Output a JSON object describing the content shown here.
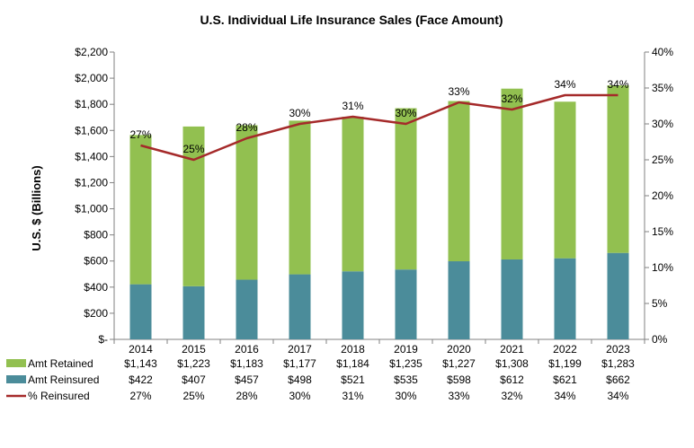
{
  "chart_data": {
    "type": "bar",
    "title": "U.S. Individual Life Insurance Sales (Face Amount)",
    "xlabel": "",
    "ylabel": "U.S. $ (Billions)",
    "ylim": [
      0,
      2200
    ],
    "y2lim": [
      0,
      40
    ],
    "y_ticks": [
      "$-",
      "$200",
      "$400",
      "$600",
      "$800",
      "$1,000",
      "$1,200",
      "$1,400",
      "$1,600",
      "$1,800",
      "$2,000",
      "$2,200"
    ],
    "y2_ticks": [
      "0%",
      "5%",
      "10%",
      "15%",
      "20%",
      "25%",
      "30%",
      "35%",
      "40%"
    ],
    "categories": [
      "2014",
      "2015",
      "2016",
      "2017",
      "2018",
      "2019",
      "2020",
      "2021",
      "2022",
      "2023"
    ],
    "stacked": true,
    "grid": false,
    "legend": "data-table-below",
    "series": [
      {
        "name": "Amt Retained",
        "type": "bar",
        "axis": "left",
        "color": "#92C050",
        "values": [
          1143,
          1223,
          1183,
          1177,
          1184,
          1235,
          1227,
          1308,
          1199,
          1283
        ],
        "labels": [
          "$1,143",
          "$1,223",
          "$1,183",
          "$1,177",
          "$1,184",
          "$1,235",
          "$1,227",
          "$1,308",
          "$1,199",
          "$1,283"
        ]
      },
      {
        "name": "Amt Reinsured",
        "type": "bar",
        "axis": "left",
        "color": "#4B8C9A",
        "values": [
          422,
          407,
          457,
          498,
          521,
          535,
          598,
          612,
          621,
          662
        ],
        "labels": [
          "$422",
          "$407",
          "$457",
          "$498",
          "$521",
          "$535",
          "$598",
          "$612",
          "$621",
          "$662"
        ]
      },
      {
        "name": "% Reinsured",
        "type": "line",
        "axis": "right",
        "color": "#A52A2A",
        "values": [
          27,
          25,
          28,
          30,
          31,
          30,
          33,
          32,
          34,
          34
        ],
        "labels": [
          "27%",
          "25%",
          "28%",
          "30%",
          "31%",
          "30%",
          "33%",
          "32%",
          "34%",
          "34%"
        ]
      }
    ]
  }
}
